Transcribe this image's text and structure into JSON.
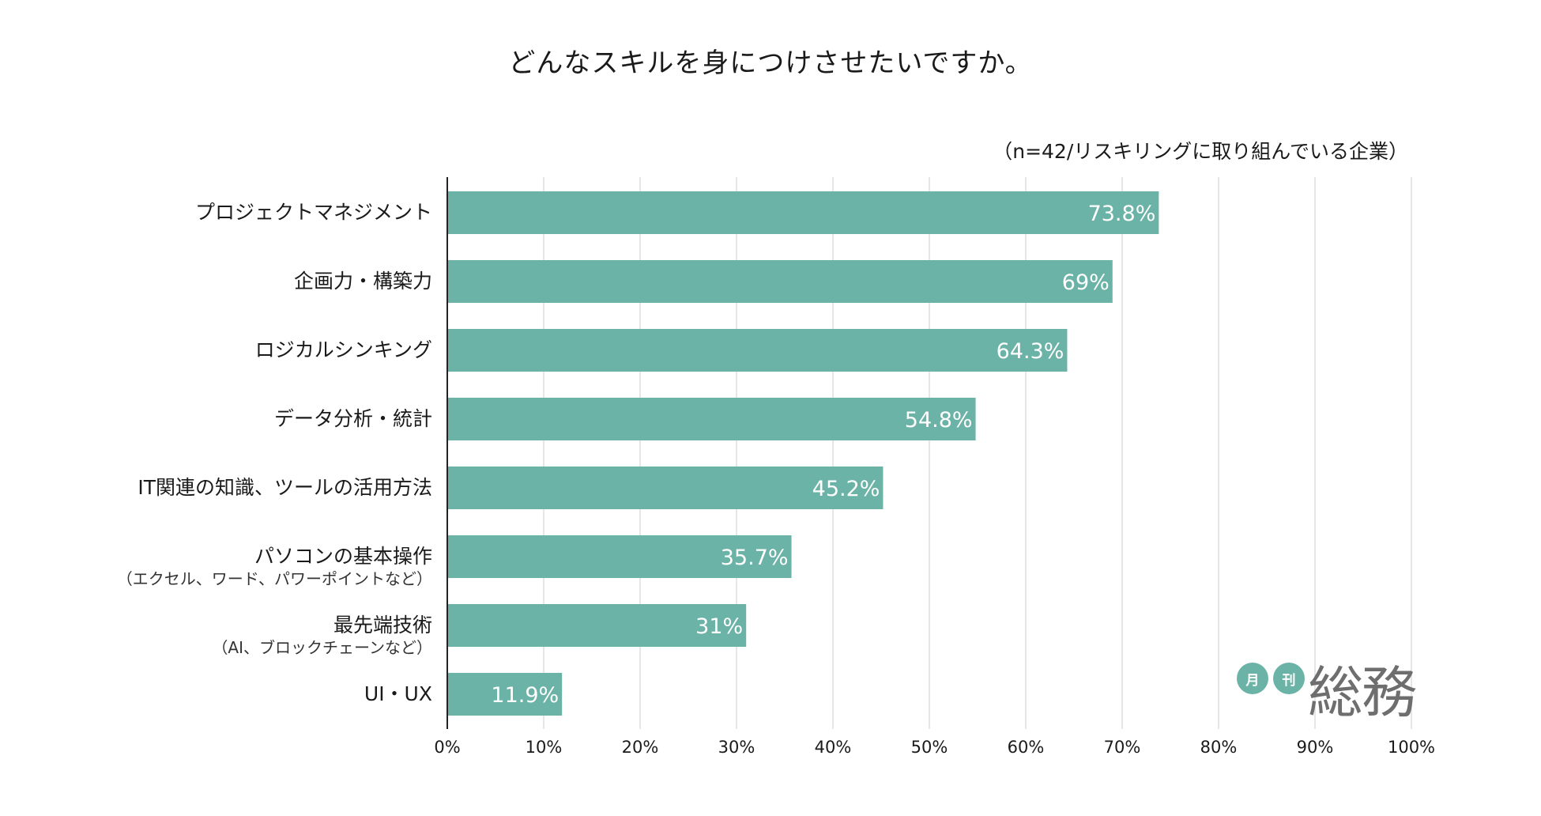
{
  "title": "どんなスキルを身につけさせたいですか。",
  "subtitle": "（n=42/リスキリングに取り組んでいる企業）",
  "logo": {
    "badge1": "月",
    "badge2": "刊",
    "text": "総務"
  },
  "colors": {
    "bar": "#6cb3a7",
    "bar_label": "#ffffff",
    "grid": "#dddddd",
    "axis": "#222222"
  },
  "chart_data": {
    "type": "bar",
    "orientation": "horizontal",
    "title": "どんなスキルを身につけさせたいですか。",
    "subtitle": "（n=42/リスキリングに取り組んでいる企業）",
    "xlabel": "",
    "ylabel": "",
    "xlim": [
      0,
      100
    ],
    "grid": true,
    "legend": "none",
    "categories": [
      {
        "label": "プロジェクトマネジメント",
        "sub": ""
      },
      {
        "label": "企画力・構築力",
        "sub": ""
      },
      {
        "label": "ロジカルシンキング",
        "sub": ""
      },
      {
        "label": "データ分析・統計",
        "sub": ""
      },
      {
        "label": "IT関連の知識、ツールの活用方法",
        "sub": ""
      },
      {
        "label": "パソコンの基本操作",
        "sub": "（エクセル、ワード、パワーポイントなど）"
      },
      {
        "label": "最先端技術",
        "sub": "（AI、ブロックチェーンなど）"
      },
      {
        "label": "UI・UX",
        "sub": ""
      }
    ],
    "values": [
      73.8,
      69,
      64.3,
      54.8,
      45.2,
      35.7,
      31,
      11.9
    ],
    "data_labels": [
      "73.8%",
      "69%",
      "64.3%",
      "54.8%",
      "45.2%",
      "35.7%",
      "31%",
      "11.9%"
    ],
    "x_ticks": [
      0,
      10,
      20,
      30,
      40,
      50,
      60,
      70,
      80,
      90,
      100
    ],
    "x_tick_labels": [
      "0%",
      "10%",
      "20%",
      "30%",
      "40%",
      "50%",
      "60%",
      "70%",
      "80%",
      "90%",
      "100%"
    ]
  }
}
